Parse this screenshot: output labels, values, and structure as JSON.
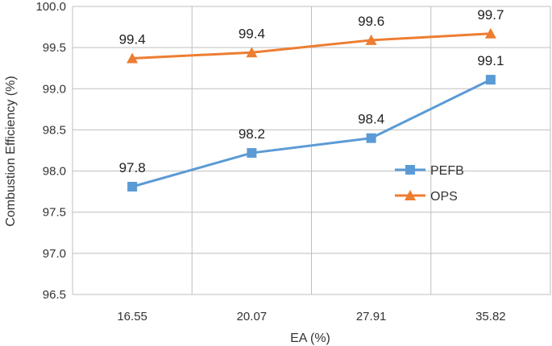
{
  "chart_data": {
    "type": "line",
    "title": "",
    "xlabel": "EA (%)",
    "ylabel": "Combustion Efficiency (%)",
    "categories": [
      "16.55",
      "20.07",
      "27.91",
      "35.82"
    ],
    "ylim": [
      96.5,
      100.0
    ],
    "yticks": [
      "96.5",
      "97.0",
      "97.5",
      "98.0",
      "98.5",
      "99.0",
      "99.5",
      "100.0"
    ],
    "grid": true,
    "legend_position": "right",
    "series": [
      {
        "name": "PEFB",
        "values": [
          97.81,
          98.22,
          98.4,
          99.11
        ],
        "labels": [
          "97.8",
          "98.2",
          "98.4",
          "99.1"
        ],
        "color": "#5B9BD5",
        "marker": "square"
      },
      {
        "name": "OPS",
        "values": [
          99.37,
          99.44,
          99.59,
          99.67
        ],
        "labels": [
          "99.4",
          "99.4",
          "99.6",
          "99.7"
        ],
        "color": "#ED7D31",
        "marker": "triangle"
      }
    ]
  }
}
